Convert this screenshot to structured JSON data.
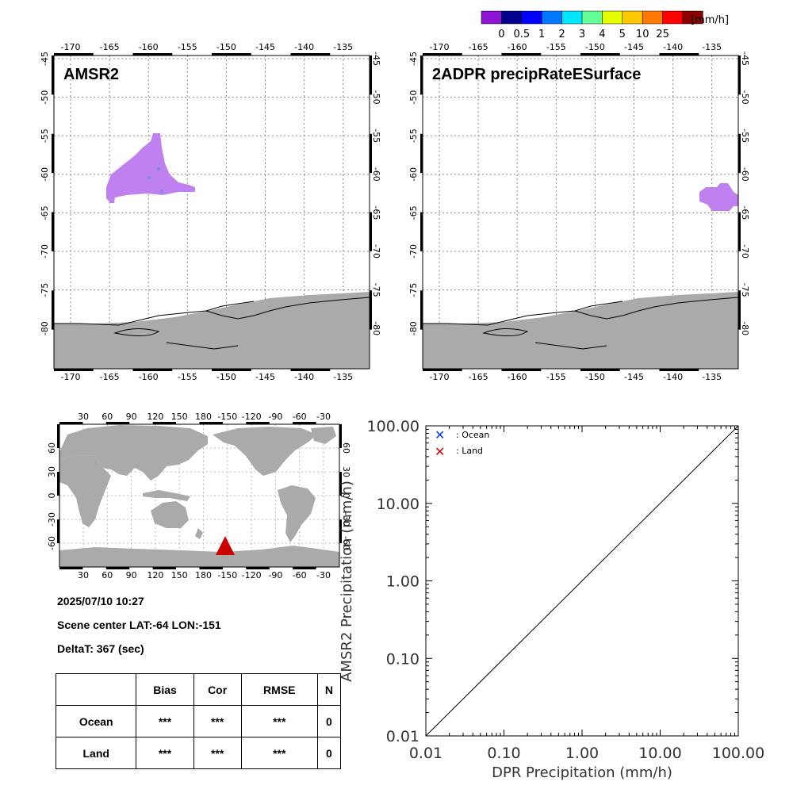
{
  "colorbar": {
    "unit": "[mm/h]",
    "labels": [
      "0",
      "0.5",
      "1",
      "2",
      "3",
      "4",
      "5",
      "10",
      "25"
    ],
    "colors": [
      "#8c14d2",
      "#00008c",
      "#0000ff",
      "#0078ff",
      "#00e6ff",
      "#64ff96",
      "#e6ff00",
      "#ffc800",
      "#ff7800",
      "#ff0000",
      "#8c0000"
    ]
  },
  "panels": {
    "amsr2": {
      "title": "AMSR2"
    },
    "dpr": {
      "title": "2ADPR precipRateESurface"
    },
    "lon_ticks": [
      "-170",
      "-165",
      "-160",
      "-155",
      "-150",
      "-145",
      "-140",
      "-135"
    ],
    "lat_ticks": [
      "-45",
      "-50",
      "-55",
      "-60",
      "-65",
      "-70",
      "-75",
      "-80"
    ],
    "colors": {
      "land": "#aaaaaa",
      "precip": "#bf80f0",
      "grid": "#888888"
    }
  },
  "world_map": {
    "top_ticks": [
      "30",
      "60",
      "90",
      "120",
      "150",
      "180",
      "-150",
      "-120",
      "-90",
      "-60",
      "-30"
    ],
    "lat_ticks": [
      "60",
      "30",
      "0",
      "-30",
      "-60"
    ],
    "marker_color": "#cc0000"
  },
  "info": {
    "datetime": "2025/07/10 10:27",
    "scene_center": "Scene center LAT:-64   LON:-151",
    "delta_t": "DeltaT:  367 (sec)"
  },
  "stats_table": {
    "headers": [
      "",
      "Bias",
      "Cor",
      "RMSE",
      "N"
    ],
    "rows": [
      {
        "label": "Ocean",
        "bias": "***",
        "cor": "***",
        "rmse": "***",
        "n": "0"
      },
      {
        "label": "Land",
        "bias": "***",
        "cor": "***",
        "rmse": "***",
        "n": "0"
      }
    ]
  },
  "chart_data": {
    "type": "scatter",
    "xlabel": "DPR Precipitation (mm/h)",
    "ylabel": "AMSR2 Precipitation (mm/h)",
    "xscale": "log",
    "yscale": "log",
    "xlim": [
      0.01,
      100
    ],
    "ylim": [
      0.01,
      100
    ],
    "x_ticks": [
      "0.01",
      "0.10",
      "1.00",
      "10.00",
      "100.00"
    ],
    "y_ticks": [
      "0.01",
      "0.10",
      "1.00",
      "10.00",
      "100.00"
    ],
    "one_to_one_line": true,
    "series": [
      {
        "name": ": Ocean",
        "color": "#0044dd",
        "points": []
      },
      {
        "name": ": Land",
        "color": "#cc0000",
        "points": []
      }
    ],
    "legend_position": "top-left"
  }
}
